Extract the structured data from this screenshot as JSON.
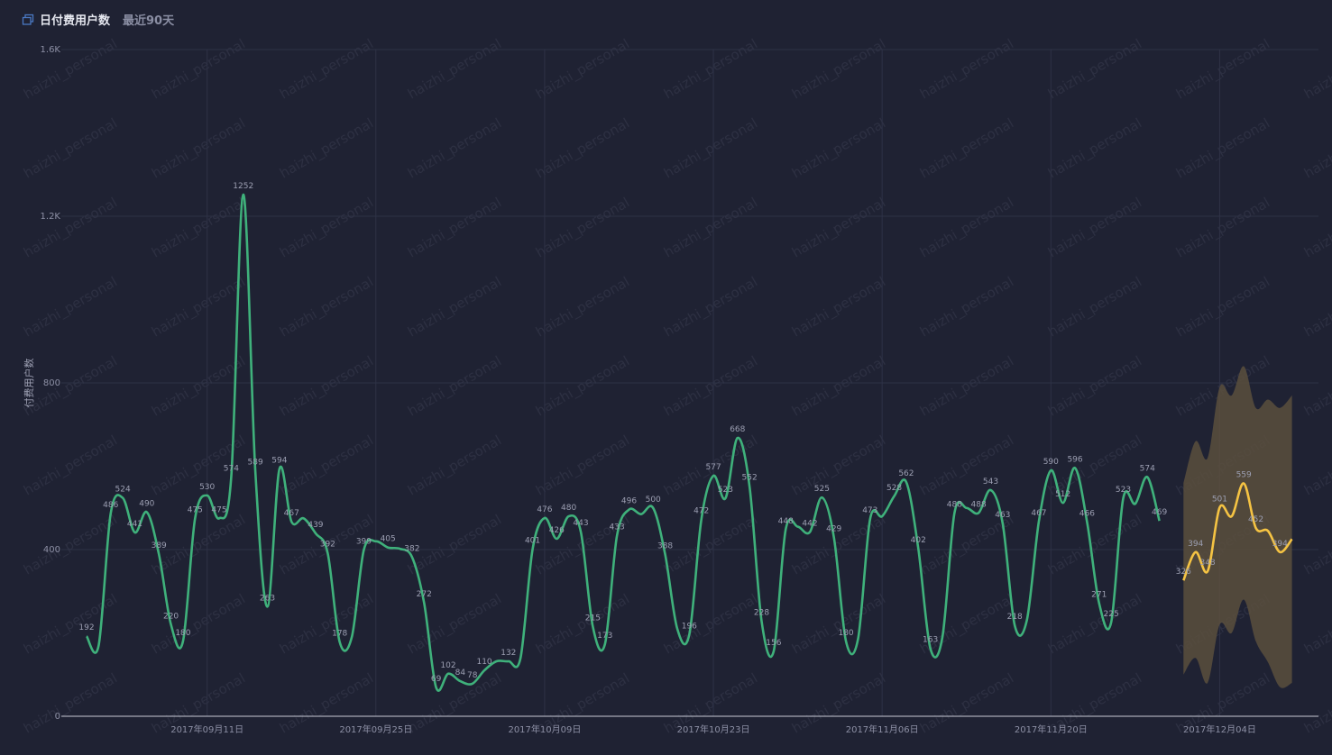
{
  "header": {
    "title": "日付费用户数",
    "subtitle": "最近90天",
    "icon": "copy-icon"
  },
  "watermark": "haizhi_personal",
  "colors": {
    "background": "#1f2233",
    "actual": "#3fb17b",
    "forecast": "#f5c343",
    "band": "#5a4f3d",
    "grid": "#2e3246"
  },
  "chart_data": {
    "type": "line",
    "ylabel": "付费用户数",
    "ylim": [
      0,
      1600
    ],
    "yticks": [
      {
        "value": 0,
        "label": "0"
      },
      {
        "value": 400,
        "label": "400"
      },
      {
        "value": 800,
        "label": "800"
      },
      {
        "value": 1200,
        "label": "1.2K"
      },
      {
        "value": 1600,
        "label": "1.6K"
      }
    ],
    "x_start": "2017-09-01",
    "x_end": "2017-12-11",
    "xticks": [
      {
        "date": "2017-09-11",
        "label": "2017年09月11日"
      },
      {
        "date": "2017-09-25",
        "label": "2017年09月25日"
      },
      {
        "date": "2017-10-09",
        "label": "2017年10月09日"
      },
      {
        "date": "2017-10-23",
        "label": "2017年10月23日"
      },
      {
        "date": "2017-11-06",
        "label": "2017年11月06日"
      },
      {
        "date": "2017-11-20",
        "label": "2017年11月20日"
      },
      {
        "date": "2017-12-04",
        "label": "2017年12月04日"
      }
    ],
    "series": [
      {
        "role": "actual",
        "points": [
          {
            "date": "2017-09-01",
            "value": 192
          },
          {
            "date": "2017-09-02",
            "value": 170
          },
          {
            "date": "2017-09-03",
            "value": 486
          },
          {
            "date": "2017-09-04",
            "value": 524
          },
          {
            "date": "2017-09-05",
            "value": 441
          },
          {
            "date": "2017-09-06",
            "value": 490
          },
          {
            "date": "2017-09-07",
            "value": 389
          },
          {
            "date": "2017-09-08",
            "value": 220
          },
          {
            "date": "2017-09-09",
            "value": 180
          },
          {
            "date": "2017-09-10",
            "value": 475
          },
          {
            "date": "2017-09-11",
            "value": 530
          },
          {
            "date": "2017-09-12",
            "value": 475
          },
          {
            "date": "2017-09-13",
            "value": 574
          },
          {
            "date": "2017-09-14",
            "value": 1252
          },
          {
            "date": "2017-09-15",
            "value": 589
          },
          {
            "date": "2017-09-16",
            "value": 263
          },
          {
            "date": "2017-09-17",
            "value": 594
          },
          {
            "date": "2017-09-18",
            "value": 467
          },
          {
            "date": "2017-09-19",
            "value": 475
          },
          {
            "date": "2017-09-20",
            "value": 439
          },
          {
            "date": "2017-09-21",
            "value": 392
          },
          {
            "date": "2017-09-22",
            "value": 178
          },
          {
            "date": "2017-09-23",
            "value": 190
          },
          {
            "date": "2017-09-24",
            "value": 399
          },
          {
            "date": "2017-09-25",
            "value": 420
          },
          {
            "date": "2017-09-26",
            "value": 405
          },
          {
            "date": "2017-09-27",
            "value": 402
          },
          {
            "date": "2017-09-28",
            "value": 382
          },
          {
            "date": "2017-09-29",
            "value": 272
          },
          {
            "date": "2017-09-30",
            "value": 69
          },
          {
            "date": "2017-10-01",
            "value": 102
          },
          {
            "date": "2017-10-02",
            "value": 84
          },
          {
            "date": "2017-10-03",
            "value": 78
          },
          {
            "date": "2017-10-04",
            "value": 110
          },
          {
            "date": "2017-10-05",
            "value": 132
          },
          {
            "date": "2017-10-06",
            "value": 132
          },
          {
            "date": "2017-10-07",
            "value": 140
          },
          {
            "date": "2017-10-08",
            "value": 401
          },
          {
            "date": "2017-10-09",
            "value": 476
          },
          {
            "date": "2017-10-10",
            "value": 426
          },
          {
            "date": "2017-10-11",
            "value": 480
          },
          {
            "date": "2017-10-12",
            "value": 443
          },
          {
            "date": "2017-10-13",
            "value": 215
          },
          {
            "date": "2017-10-14",
            "value": 173
          },
          {
            "date": "2017-10-15",
            "value": 433
          },
          {
            "date": "2017-10-16",
            "value": 496
          },
          {
            "date": "2017-10-17",
            "value": 485
          },
          {
            "date": "2017-10-18",
            "value": 500
          },
          {
            "date": "2017-10-19",
            "value": 388
          },
          {
            "date": "2017-10-20",
            "value": 210
          },
          {
            "date": "2017-10-21",
            "value": 196
          },
          {
            "date": "2017-10-22",
            "value": 472
          },
          {
            "date": "2017-10-23",
            "value": 577
          },
          {
            "date": "2017-10-24",
            "value": 523
          },
          {
            "date": "2017-10-25",
            "value": 668
          },
          {
            "date": "2017-10-26",
            "value": 552
          },
          {
            "date": "2017-10-27",
            "value": 228
          },
          {
            "date": "2017-10-28",
            "value": 156
          },
          {
            "date": "2017-10-29",
            "value": 448
          },
          {
            "date": "2017-10-30",
            "value": 455
          },
          {
            "date": "2017-10-31",
            "value": 442
          },
          {
            "date": "2017-11-01",
            "value": 525
          },
          {
            "date": "2017-11-02",
            "value": 429
          },
          {
            "date": "2017-11-03",
            "value": 180
          },
          {
            "date": "2017-11-04",
            "value": 185
          },
          {
            "date": "2017-11-05",
            "value": 473
          },
          {
            "date": "2017-11-06",
            "value": 480
          },
          {
            "date": "2017-11-07",
            "value": 528
          },
          {
            "date": "2017-11-08",
            "value": 562
          },
          {
            "date": "2017-11-09",
            "value": 402
          },
          {
            "date": "2017-11-10",
            "value": 163
          },
          {
            "date": "2017-11-11",
            "value": 190
          },
          {
            "date": "2017-11-12",
            "value": 488
          },
          {
            "date": "2017-11-13",
            "value": 500
          },
          {
            "date": "2017-11-14",
            "value": 488
          },
          {
            "date": "2017-11-15",
            "value": 543
          },
          {
            "date": "2017-11-16",
            "value": 463
          },
          {
            "date": "2017-11-17",
            "value": 218
          },
          {
            "date": "2017-11-18",
            "value": 230
          },
          {
            "date": "2017-11-19",
            "value": 467
          },
          {
            "date": "2017-11-20",
            "value": 590
          },
          {
            "date": "2017-11-21",
            "value": 512
          },
          {
            "date": "2017-11-22",
            "value": 596
          },
          {
            "date": "2017-11-23",
            "value": 466
          },
          {
            "date": "2017-11-24",
            "value": 271
          },
          {
            "date": "2017-11-25",
            "value": 225
          },
          {
            "date": "2017-11-26",
            "value": 523
          },
          {
            "date": "2017-11-27",
            "value": 510
          },
          {
            "date": "2017-11-28",
            "value": 574
          },
          {
            "date": "2017-11-29",
            "value": 469
          }
        ]
      },
      {
        "role": "forecast",
        "points": [
          {
            "date": "2017-12-01",
            "value": 326,
            "lower": 100,
            "upper": 560
          },
          {
            "date": "2017-12-02",
            "value": 394,
            "lower": 140,
            "upper": 660
          },
          {
            "date": "2017-12-03",
            "value": 348,
            "lower": 80,
            "upper": 620
          },
          {
            "date": "2017-12-04",
            "value": 501,
            "lower": 220,
            "upper": 790
          },
          {
            "date": "2017-12-05",
            "value": 480,
            "lower": 200,
            "upper": 770
          },
          {
            "date": "2017-12-06",
            "value": 559,
            "lower": 280,
            "upper": 840
          },
          {
            "date": "2017-12-07",
            "value": 452,
            "lower": 180,
            "upper": 740
          },
          {
            "date": "2017-12-08",
            "value": 445,
            "lower": 130,
            "upper": 760
          },
          {
            "date": "2017-12-09",
            "value": 394,
            "lower": 70,
            "upper": 740
          },
          {
            "date": "2017-12-10",
            "value": 425,
            "lower": 80,
            "upper": 770
          }
        ]
      }
    ],
    "data_labels": [
      {
        "date": "2017-09-01",
        "text": "192"
      },
      {
        "date": "2017-09-03",
        "text": "486"
      },
      {
        "date": "2017-09-04",
        "text": "524"
      },
      {
        "date": "2017-09-05",
        "text": "441"
      },
      {
        "date": "2017-09-06",
        "text": "490"
      },
      {
        "date": "2017-09-07",
        "text": "389"
      },
      {
        "date": "2017-09-08",
        "text": "220"
      },
      {
        "date": "2017-09-09",
        "text": "180"
      },
      {
        "date": "2017-09-10",
        "text": "475"
      },
      {
        "date": "2017-09-11",
        "text": "530"
      },
      {
        "date": "2017-09-12",
        "text": "475"
      },
      {
        "date": "2017-09-13",
        "text": "574"
      },
      {
        "date": "2017-09-14",
        "text": "1252"
      },
      {
        "date": "2017-09-15",
        "text": "589"
      },
      {
        "date": "2017-09-16",
        "text": "263"
      },
      {
        "date": "2017-09-17",
        "text": "594"
      },
      {
        "date": "2017-09-18",
        "text": "467"
      },
      {
        "date": "2017-09-20",
        "text": "439"
      },
      {
        "date": "2017-09-21",
        "text": "392"
      },
      {
        "date": "2017-09-22",
        "text": "178"
      },
      {
        "date": "2017-09-24",
        "text": "399"
      },
      {
        "date": "2017-09-26",
        "text": "405"
      },
      {
        "date": "2017-09-28",
        "text": "382"
      },
      {
        "date": "2017-09-29",
        "text": "272"
      },
      {
        "date": "2017-09-30",
        "text": "69"
      },
      {
        "date": "2017-10-01",
        "text": "102"
      },
      {
        "date": "2017-10-02",
        "text": "84"
      },
      {
        "date": "2017-10-03",
        "text": "78"
      },
      {
        "date": "2017-10-04",
        "text": "110"
      },
      {
        "date": "2017-10-06",
        "text": "132"
      },
      {
        "date": "2017-10-08",
        "text": "401"
      },
      {
        "date": "2017-10-09",
        "text": "476"
      },
      {
        "date": "2017-10-10",
        "text": "426"
      },
      {
        "date": "2017-10-11",
        "text": "480"
      },
      {
        "date": "2017-10-12",
        "text": "443"
      },
      {
        "date": "2017-10-13",
        "text": "215"
      },
      {
        "date": "2017-10-14",
        "text": "173"
      },
      {
        "date": "2017-10-15",
        "text": "433"
      },
      {
        "date": "2017-10-16",
        "text": "496"
      },
      {
        "date": "2017-10-18",
        "text": "500"
      },
      {
        "date": "2017-10-19",
        "text": "388"
      },
      {
        "date": "2017-10-21",
        "text": "196"
      },
      {
        "date": "2017-10-22",
        "text": "472"
      },
      {
        "date": "2017-10-23",
        "text": "577"
      },
      {
        "date": "2017-10-24",
        "text": "523"
      },
      {
        "date": "2017-10-25",
        "text": "668"
      },
      {
        "date": "2017-10-26",
        "text": "552"
      },
      {
        "date": "2017-10-27",
        "text": "228"
      },
      {
        "date": "2017-10-28",
        "text": "156"
      },
      {
        "date": "2017-10-29",
        "text": "448"
      },
      {
        "date": "2017-10-31",
        "text": "442"
      },
      {
        "date": "2017-11-01",
        "text": "525"
      },
      {
        "date": "2017-11-02",
        "text": "429"
      },
      {
        "date": "2017-11-03",
        "text": "180"
      },
      {
        "date": "2017-11-05",
        "text": "473"
      },
      {
        "date": "2017-11-07",
        "text": "528"
      },
      {
        "date": "2017-11-08",
        "text": "562"
      },
      {
        "date": "2017-11-09",
        "text": "402"
      },
      {
        "date": "2017-11-10",
        "text": "163"
      },
      {
        "date": "2017-11-12",
        "text": "488"
      },
      {
        "date": "2017-11-14",
        "text": "488"
      },
      {
        "date": "2017-11-15",
        "text": "543"
      },
      {
        "date": "2017-11-16",
        "text": "463"
      },
      {
        "date": "2017-11-17",
        "text": "218"
      },
      {
        "date": "2017-11-19",
        "text": "467"
      },
      {
        "date": "2017-11-20",
        "text": "590"
      },
      {
        "date": "2017-11-21",
        "text": "512"
      },
      {
        "date": "2017-11-22",
        "text": "596"
      },
      {
        "date": "2017-11-23",
        "text": "466"
      },
      {
        "date": "2017-11-24",
        "text": "271"
      },
      {
        "date": "2017-11-25",
        "text": "225"
      },
      {
        "date": "2017-11-26",
        "text": "523"
      },
      {
        "date": "2017-11-28",
        "text": "574"
      },
      {
        "date": "2017-11-29",
        "text": "469"
      },
      {
        "date": "2017-12-01",
        "text": "326"
      },
      {
        "date": "2017-12-02",
        "text": "394"
      },
      {
        "date": "2017-12-03",
        "text": "348"
      },
      {
        "date": "2017-12-04",
        "text": "501"
      },
      {
        "date": "2017-12-06",
        "text": "559"
      },
      {
        "date": "2017-12-07",
        "text": "452"
      },
      {
        "date": "2017-12-09",
        "text": "394"
      }
    ]
  }
}
